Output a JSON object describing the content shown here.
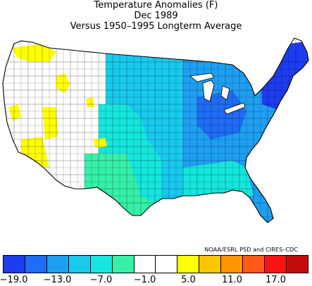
{
  "title": {
    "line1": "Temperature Anomalies (F)",
    "line2": "Dec 1989",
    "line3": "Versus 1950–1995 Longterm Average"
  },
  "credit": "NOAA/ESRL PSD and CIRES–CDC",
  "legend": {
    "colors": [
      "#1d3cf0",
      "#1f6cf5",
      "#1e9ff2",
      "#19c9ee",
      "#15e6de",
      "#36f0a8",
      "#ffffff",
      "#ffffff",
      "#ffff00",
      "#ffc400",
      "#ff9400",
      "#ff5a1a",
      "#f61414",
      "#c40c0c"
    ],
    "labels": [
      "−19.0",
      "−13.0",
      "−7.0",
      "−1.0",
      "5.0",
      "11.0",
      "17.0"
    ]
  },
  "colors": {
    "blue_dark": "#1d3cf0",
    "blue": "#1f6cf5",
    "blue_mid": "#1e9ff2",
    "cyan": "#19c9ee",
    "teal": "#15e6de",
    "seafoam": "#36f0a8",
    "yellow": "#ffff00"
  }
}
